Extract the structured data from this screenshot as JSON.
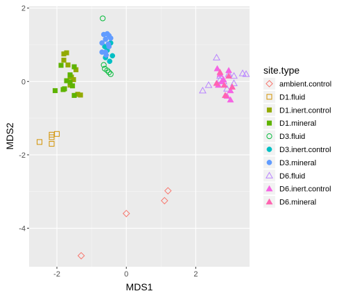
{
  "chart_data": {
    "type": "scatter",
    "xlabel": "MDS1",
    "ylabel": "MDS2",
    "xlim": [
      -2.8,
      3.55
    ],
    "ylim": [
      -5.05,
      2.05
    ],
    "x_ticks": [
      -2,
      0,
      2
    ],
    "y_ticks": [
      2,
      0,
      -2,
      -4
    ],
    "grid": true,
    "legend": {
      "title": "site.type",
      "placement": "right"
    },
    "series": [
      {
        "name": "ambient.control",
        "color": "#F8766D",
        "shape": "diamond-open",
        "points": [
          [
            -1.3,
            -4.75
          ],
          [
            0.0,
            -3.6
          ],
          [
            1.1,
            -3.25
          ],
          [
            1.2,
            -2.98
          ]
        ]
      },
      {
        "name": "D1.fluid",
        "color": "#D39200",
        "shape": "square-open",
        "points": [
          [
            -2.5,
            -1.65
          ],
          [
            -2.15,
            -1.45
          ],
          [
            -2.15,
            -1.52
          ],
          [
            -2.0,
            -1.43
          ],
          [
            -2.15,
            -1.7
          ]
        ]
      },
      {
        "name": "D1.inert.control",
        "color": "#93AA00",
        "shape": "square",
        "points": [
          [
            -1.8,
            0.75
          ],
          [
            -1.72,
            0.78
          ],
          [
            -1.8,
            0.58
          ],
          [
            -1.68,
            0.45
          ],
          [
            -1.58,
            0.12
          ],
          [
            -1.62,
            0.15
          ],
          [
            -1.52,
            0.05
          ],
          [
            -1.62,
            -0.1
          ],
          [
            -1.4,
            -0.35
          ],
          [
            -1.32,
            -0.37
          ],
          [
            -1.45,
            0.32
          ]
        ]
      },
      {
        "name": "D1.mineral",
        "color": "#5EB300",
        "shape": "square",
        "points": [
          [
            -1.88,
            0.44
          ],
          [
            -1.62,
            0.18
          ],
          [
            -1.72,
            0.02
          ],
          [
            -1.62,
            -0.02
          ],
          [
            -1.78,
            -0.2
          ],
          [
            -2.05,
            -0.25
          ],
          [
            -1.82,
            -0.22
          ],
          [
            -1.55,
            -0.12
          ],
          [
            -1.5,
            -0.38
          ],
          [
            -1.5,
            0.4
          ]
        ]
      },
      {
        "name": "D3.fluid",
        "color": "#00BA38",
        "shape": "circle-open",
        "points": [
          [
            -0.68,
            1.72
          ],
          [
            -0.65,
            0.45
          ],
          [
            -0.55,
            0.3
          ],
          [
            -0.62,
            0.35
          ],
          [
            -0.5,
            0.25
          ],
          [
            -0.45,
            0.2
          ]
        ]
      },
      {
        "name": "D3.inert.control",
        "color": "#00BFC4",
        "shape": "circle",
        "points": [
          [
            -0.6,
            0.65
          ],
          [
            -0.55,
            0.85
          ],
          [
            -0.48,
            0.55
          ],
          [
            -0.45,
            1.05
          ],
          [
            -0.4,
            0.7
          ],
          [
            -0.62,
            0.95
          ]
        ]
      },
      {
        "name": "D3.mineral",
        "color": "#619CFF",
        "shape": "circle",
        "points": [
          [
            -0.55,
            1.3
          ],
          [
            -0.5,
            1.25
          ],
          [
            -0.6,
            1.15
          ],
          [
            -0.7,
            1.05
          ],
          [
            -0.52,
            1.02
          ],
          [
            -0.65,
            1.28
          ],
          [
            -0.6,
            0.8
          ],
          [
            -0.7,
            0.8
          ],
          [
            -0.58,
            0.72
          ],
          [
            -0.45,
            1.18
          ],
          [
            -0.5,
            0.95
          ]
        ]
      },
      {
        "name": "D6.fluid",
        "color": "#B983FF",
        "shape": "triangle-open",
        "points": [
          [
            2.6,
            0.65
          ],
          [
            2.2,
            -0.25
          ],
          [
            2.37,
            -0.1
          ],
          [
            2.7,
            0.15
          ],
          [
            2.95,
            0.2
          ],
          [
            3.1,
            0.15
          ],
          [
            2.8,
            0.0
          ],
          [
            3.35,
            0.22
          ],
          [
            3.45,
            0.2
          ],
          [
            3.1,
            -0.05
          ],
          [
            2.9,
            -0.2
          ],
          [
            2.7,
            0.05
          ]
        ]
      },
      {
        "name": "D6.inert.control",
        "color": "#F564E3",
        "shape": "triangle",
        "points": [
          [
            2.62,
            0.35
          ],
          [
            2.75,
            0.0
          ],
          [
            2.65,
            -0.1
          ],
          [
            2.8,
            0.05
          ],
          [
            2.95,
            0.3
          ],
          [
            3.0,
            -0.25
          ],
          [
            2.9,
            -0.4
          ],
          [
            3.0,
            -0.5
          ],
          [
            2.7,
            0.2
          ]
        ]
      },
      {
        "name": "D6.mineral",
        "color": "#FF64B0",
        "shape": "triangle",
        "points": [
          [
            2.6,
            -0.05
          ],
          [
            2.82,
            -0.1
          ],
          [
            2.85,
            -0.38
          ],
          [
            2.95,
            0.15
          ],
          [
            2.7,
            0.25
          ],
          [
            3.05,
            -0.15
          ]
        ]
      }
    ]
  }
}
